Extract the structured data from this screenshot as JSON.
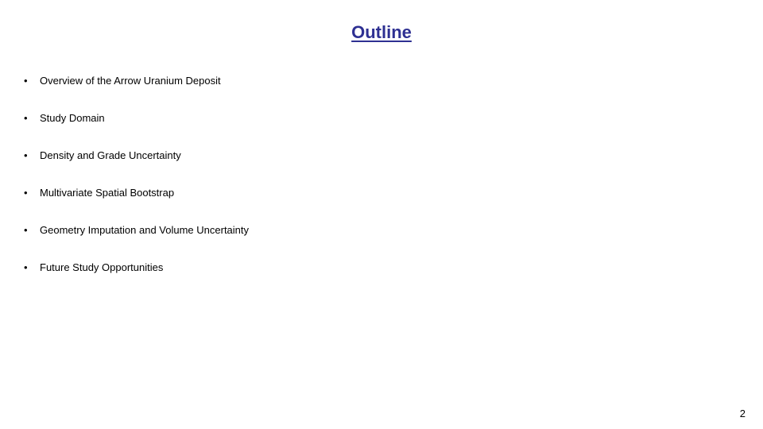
{
  "title": "Outline",
  "title_color": "#2e3092",
  "title_fontsize": 22,
  "bullets": [
    "Overview of the Arrow Uranium Deposit",
    "Study Domain",
    "Density and Grade Uncertainty",
    "Multivariate Spatial Bootstrap",
    "Geometry Imputation and Volume Uncertainty",
    "Future Study Opportunities"
  ],
  "bullet_fontsize": 13,
  "bullet_color": "#000000",
  "page_number": "2",
  "background_color": "#ffffff"
}
